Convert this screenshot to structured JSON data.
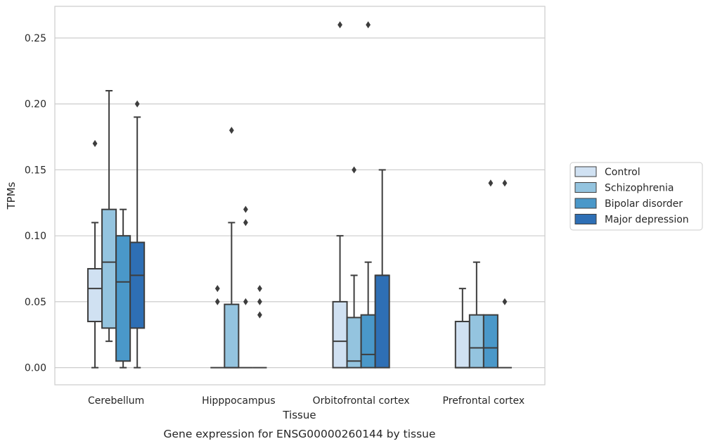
{
  "chart_data": {
    "type": "boxplot",
    "xlabel": "Tissue",
    "ylabel": "TPMs",
    "caption": "Gene expression for ENSG00000260144 by tissue",
    "ylim": [
      -0.013,
      0.274
    ],
    "yticks": [
      "0.00",
      "0.05",
      "0.10",
      "0.15",
      "0.20",
      "0.25"
    ],
    "categories": [
      "Cerebellum",
      "Hipppocampus",
      "Orbitofrontal cortex",
      "Prefrontal cortex"
    ],
    "grid": "horizontal",
    "legend_position": "right",
    "series": [
      {
        "name": "Control",
        "color": "#d0e1f2",
        "boxes": [
          {
            "whisker_low": 0.0,
            "q1": 0.035,
            "median": 0.06,
            "q3": 0.075,
            "whisker_high": 0.11,
            "outliers": [
              0.17
            ]
          },
          {
            "whisker_low": 0.0,
            "q1": 0.0,
            "median": 0.0,
            "q3": 0.0,
            "whisker_high": 0.0,
            "outliers": [
              0.05,
              0.06
            ]
          },
          {
            "whisker_low": 0.0,
            "q1": 0.0,
            "median": 0.02,
            "q3": 0.05,
            "whisker_high": 0.1,
            "outliers": [
              0.26
            ]
          },
          {
            "whisker_low": 0.0,
            "q1": 0.0,
            "median": 0.0,
            "q3": 0.035,
            "whisker_high": 0.06,
            "outliers": []
          }
        ]
      },
      {
        "name": "Schizophrenia",
        "color": "#94c4df",
        "boxes": [
          {
            "whisker_low": 0.02,
            "q1": 0.03,
            "median": 0.08,
            "q3": 0.12,
            "whisker_high": 0.21,
            "outliers": []
          },
          {
            "whisker_low": 0.0,
            "q1": 0.0,
            "median": 0.0,
            "q3": 0.048,
            "whisker_high": 0.11,
            "outliers": [
              0.18
            ]
          },
          {
            "whisker_low": 0.0,
            "q1": 0.0,
            "median": 0.005,
            "q3": 0.038,
            "whisker_high": 0.07,
            "outliers": [
              0.15
            ]
          },
          {
            "whisker_low": 0.0,
            "q1": 0.0,
            "median": 0.015,
            "q3": 0.04,
            "whisker_high": 0.08,
            "outliers": []
          }
        ]
      },
      {
        "name": "Bipolar disorder",
        "color": "#4a98c9",
        "boxes": [
          {
            "whisker_low": 0.0,
            "q1": 0.005,
            "median": 0.065,
            "q3": 0.1,
            "whisker_high": 0.12,
            "outliers": []
          },
          {
            "whisker_low": 0.0,
            "q1": 0.0,
            "median": 0.0,
            "q3": 0.0,
            "whisker_high": 0.0,
            "outliers": [
              0.05,
              0.11,
              0.12
            ]
          },
          {
            "whisker_low": 0.0,
            "q1": 0.0,
            "median": 0.01,
            "q3": 0.04,
            "whisker_high": 0.08,
            "outliers": [
              0.26
            ]
          },
          {
            "whisker_low": 0.0,
            "q1": 0.0,
            "median": 0.015,
            "q3": 0.04,
            "whisker_high": 0.04,
            "outliers": [
              0.14
            ]
          }
        ]
      },
      {
        "name": "Major depression",
        "color": "#2e6fb5",
        "boxes": [
          {
            "whisker_low": 0.0,
            "q1": 0.03,
            "median": 0.07,
            "q3": 0.095,
            "whisker_high": 0.19,
            "outliers": [
              0.2
            ]
          },
          {
            "whisker_low": 0.0,
            "q1": 0.0,
            "median": 0.0,
            "q3": 0.0,
            "whisker_high": 0.0,
            "outliers": [
              0.04,
              0.05,
              0.06
            ]
          },
          {
            "whisker_low": 0.0,
            "q1": 0.0,
            "median": 0.07,
            "q3": 0.07,
            "whisker_high": 0.15,
            "outliers": []
          },
          {
            "whisker_low": 0.0,
            "q1": 0.0,
            "median": 0.0,
            "q3": 0.0,
            "whisker_high": 0.0,
            "outliers": [
              0.05,
              0.14
            ]
          }
        ]
      }
    ]
  }
}
